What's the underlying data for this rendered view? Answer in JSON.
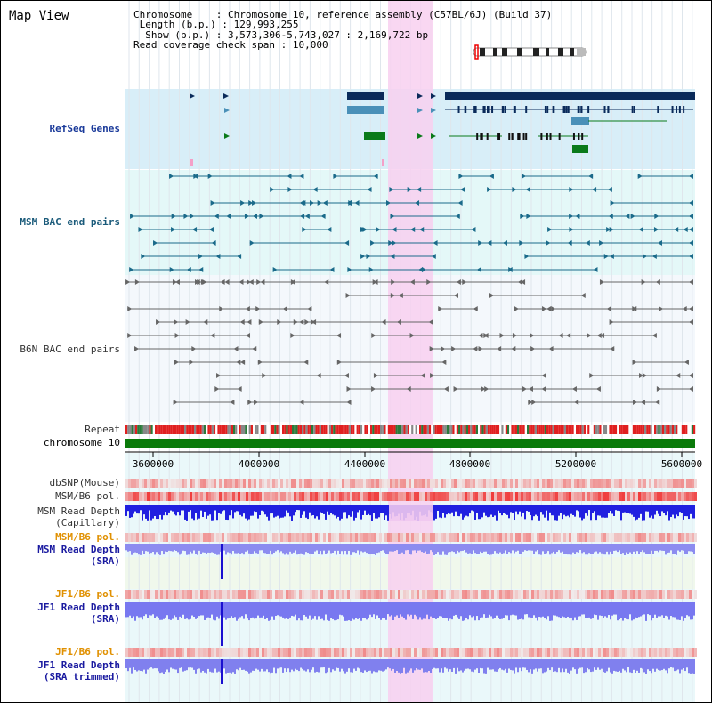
{
  "title": "Map View",
  "info": {
    "chromosome_key": "Chromosome",
    "chromosome_val": "Chromosome 10, reference assembly (C57BL/6J) (Build 37)",
    "length_key": "Length (b.p.)",
    "length_val": "129,993,255",
    "show_key": "Show (b.p.)",
    "show_val": "3,573,306-5,743,027 : 2,169,722 bp",
    "span_key": "Read coverage check span",
    "span_val": "10,000"
  },
  "tracks": {
    "refseq": "RefSeq Genes",
    "msm_bac": "MSM BAC end pairs",
    "b6n_bac": "B6N BAC end pairs",
    "repeat": "Repeat",
    "chromosome": "chromosome 10",
    "dbsnp": "dbSNP(Mouse)",
    "msm_b6_pol_1": "MSM/B6 pol.",
    "msm_depth_cap_1": "MSM Read Depth",
    "msm_depth_cap_2": "(Capillary)",
    "msm_b6_pol_2": "MSM/B6 pol.",
    "msm_depth_sra_1": "MSM Read Depth",
    "msm_depth_sra_2": "(SRA)",
    "jf1_b6_pol_1": "JF1/B6 pol.",
    "jf1_depth_sra_1": "JF1 Read Depth",
    "jf1_depth_sra_2": "(SRA)",
    "jf1_b6_pol_2": "JF1/B6 pol.",
    "jf1_depth_trim_1": "JF1 Read Depth",
    "jf1_depth_trim_2": "(SRA trimmed)"
  },
  "axis": {
    "ticks": [
      "3600000",
      "4000000",
      "4400000",
      "4800000",
      "5200000",
      "5600000"
    ]
  },
  "colors": {
    "highlight": "#f8d0f0",
    "refseq_bg": "#d8eef8",
    "msm_bg": "#e4f8f8",
    "b6n_bg": "#f4f8fc",
    "gene_dark": "#0a2a5a",
    "gene_light": "#4a90b8",
    "gene_green": "#0a7a1a",
    "chromosome": "#0a7a0a",
    "depth_blue": "#1a2ae0",
    "depth_light": "#8888f0",
    "pol_red": "#f05050"
  }
}
